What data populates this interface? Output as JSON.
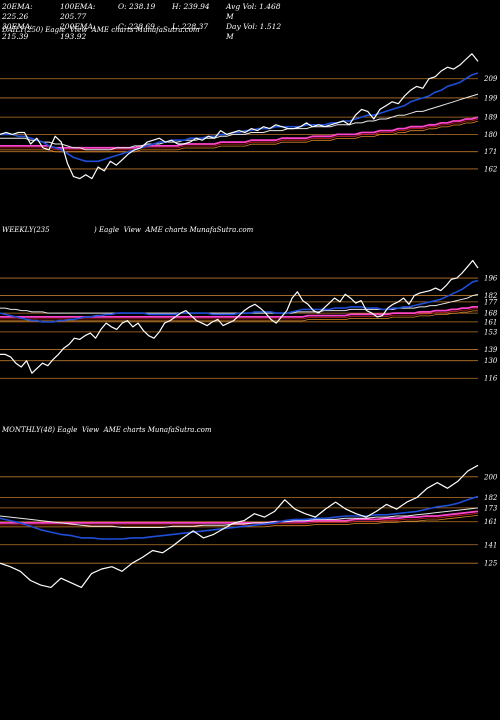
{
  "stats": {
    "row1": [
      "20EMA: 225.26",
      "100EMA: 205.77",
      "O: 238.19",
      "H: 239.94",
      "Avg Vol: 1.468 M"
    ],
    "row2": [
      "30EMA: 215.39",
      "200EMA: 193.92",
      "C: 228.69",
      "L: 228.37",
      "Day Vol: 1.512 M"
    ]
  },
  "colors": {
    "price": "#ffffff",
    "ema_fast": "#1f4fd8",
    "ema_mid": "#e8e8e8",
    "ema_slow": "#ff44cc",
    "ema_long": "#cc2222",
    "level": "#b8762b",
    "ema_orange": "#d98a2a"
  },
  "chart_data": [
    {
      "type": "line",
      "title": "DAILY(250) Eagle  View  AME charts MunafaSutra.com",
      "levels": [
        209,
        199,
        189,
        180,
        171,
        162
      ],
      "ylim": [
        150,
        225
      ],
      "series": [
        {
          "role": "price",
          "values": [
            180,
            181,
            180,
            181,
            181,
            175,
            178,
            173,
            172,
            179,
            176,
            165,
            158,
            157,
            159,
            157,
            163,
            161,
            166,
            164,
            167,
            170,
            172,
            173,
            176,
            177,
            178,
            176,
            177,
            175,
            175,
            176,
            178,
            177,
            179,
            178,
            182,
            180,
            181,
            182,
            181,
            183,
            182,
            184,
            183,
            185,
            184,
            183,
            183,
            184,
            186,
            184,
            185,
            184,
            185,
            186,
            187,
            185,
            190,
            193,
            192,
            188,
            193,
            195,
            197,
            196,
            200,
            203,
            205,
            204,
            209,
            210,
            213,
            215,
            214,
            216,
            219,
            222,
            218
          ]
        },
        {
          "role": "ema_fast",
          "values": [
            180,
            180,
            180,
            179,
            179,
            178,
            177,
            176,
            174,
            173,
            172,
            170,
            168,
            167,
            166,
            166,
            166,
            167,
            168,
            169,
            170,
            171,
            172,
            173,
            174,
            175,
            176,
            176,
            177,
            177,
            177,
            178,
            178,
            178,
            179,
            179,
            180,
            180,
            181,
            181,
            182,
            182,
            183,
            183,
            183,
            184,
            184,
            184,
            184,
            184,
            185,
            185,
            185,
            185,
            186,
            186,
            187,
            187,
            188,
            189,
            190,
            190,
            191,
            192,
            193,
            194,
            195,
            197,
            198,
            199,
            200,
            202,
            203,
            205,
            206,
            207,
            209,
            211,
            212
          ]
        },
        {
          "role": "ema_mid",
          "values": [
            178,
            178,
            178,
            178,
            178,
            177,
            177,
            176,
            176,
            175,
            175,
            174,
            173,
            173,
            172,
            172,
            172,
            172,
            172,
            173,
            173,
            173,
            174,
            174,
            175,
            175,
            175,
            176,
            176,
            176,
            177,
            177,
            177,
            178,
            178,
            178,
            179,
            179,
            180,
            180,
            180,
            181,
            181,
            181,
            182,
            182,
            182,
            183,
            183,
            183,
            183,
            184,
            184,
            184,
            184,
            185,
            185,
            185,
            186,
            186,
            187,
            187,
            188,
            188,
            189,
            190,
            190,
            191,
            192,
            192,
            193,
            194,
            195,
            196,
            197,
            198,
            199,
            200,
            201
          ]
        },
        {
          "role": "ema_slow",
          "values": [
            174,
            174,
            174,
            174,
            174,
            174,
            174,
            174,
            174,
            173,
            173,
            173,
            173,
            173,
            173,
            173,
            173,
            173,
            173,
            173,
            173,
            173,
            173,
            174,
            174,
            174,
            174,
            174,
            174,
            174,
            175,
            175,
            175,
            175,
            175,
            175,
            176,
            176,
            176,
            176,
            176,
            177,
            177,
            177,
            177,
            177,
            178,
            178,
            178,
            178,
            178,
            179,
            179,
            179,
            179,
            180,
            180,
            180,
            180,
            181,
            181,
            181,
            182,
            182,
            182,
            183,
            183,
            184,
            184,
            184,
            185,
            185,
            186,
            186,
            187,
            187,
            188,
            188,
            189
          ]
        }
      ]
    },
    {
      "type": "line",
      "title": "WEEKLY(235                    ) Eagle  View  AME charts MunafaSutra.com",
      "levels": [
        196,
        182,
        177,
        168,
        161,
        153,
        139,
        130,
        116
      ],
      "ylim": [
        105,
        220
      ],
      "series": [
        {
          "role": "price",
          "values": [
            135,
            135,
            133,
            128,
            125,
            130,
            120,
            124,
            128,
            126,
            131,
            135,
            140,
            143,
            148,
            147,
            150,
            152,
            148,
            155,
            160,
            157,
            155,
            160,
            162,
            157,
            160,
            154,
            150,
            148,
            153,
            160,
            162,
            165,
            168,
            170,
            166,
            162,
            160,
            158,
            161,
            163,
            158,
            160,
            162,
            166,
            170,
            173,
            175,
            172,
            168,
            163,
            160,
            165,
            170,
            180,
            185,
            178,
            175,
            170,
            168,
            172,
            176,
            180,
            177,
            183,
            180,
            176,
            178,
            170,
            168,
            165,
            166,
            172,
            175,
            177,
            180,
            175,
            182,
            184,
            185,
            186,
            188,
            186,
            190,
            195,
            196,
            200,
            205,
            210,
            204
          ]
        },
        {
          "role": "ema_fast",
          "values": [
            168,
            167,
            166,
            165,
            164,
            163,
            162,
            162,
            161,
            161,
            161,
            162,
            162,
            163,
            163,
            164,
            165,
            165,
            166,
            166,
            167,
            167,
            168,
            168,
            168,
            168,
            168,
            168,
            167,
            167,
            167,
            167,
            167,
            167,
            168,
            168,
            168,
            168,
            168,
            168,
            167,
            167,
            167,
            167,
            167,
            168,
            168,
            168,
            169,
            169,
            169,
            169,
            168,
            168,
            168,
            169,
            170,
            171,
            171,
            171,
            171,
            171,
            171,
            172,
            172,
            172,
            173,
            173,
            173,
            172,
            172,
            172,
            171,
            171,
            172,
            172,
            173,
            173,
            174,
            175,
            176,
            177,
            178,
            179,
            181,
            183,
            185,
            187,
            190,
            193,
            194
          ]
        },
        {
          "role": "ema_mid",
          "values": [
            172,
            172,
            171,
            171,
            170,
            170,
            169,
            169,
            169,
            168,
            168,
            168,
            168,
            168,
            168,
            168,
            168,
            168,
            168,
            168,
            168,
            168,
            168,
            168,
            168,
            168,
            168,
            168,
            168,
            168,
            168,
            168,
            168,
            168,
            168,
            168,
            168,
            168,
            168,
            168,
            168,
            168,
            168,
            168,
            168,
            168,
            168,
            168,
            168,
            168,
            168,
            168,
            168,
            168,
            168,
            168,
            169,
            169,
            169,
            169,
            169,
            170,
            170,
            170,
            170,
            170,
            171,
            171,
            171,
            171,
            171,
            171,
            171,
            171,
            171,
            172,
            172,
            172,
            172,
            173,
            173,
            174,
            174,
            175,
            176,
            177,
            178,
            179,
            180,
            182,
            183
          ]
        },
        {
          "role": "ema_slow",
          "values": [
            165,
            165,
            165,
            165,
            165,
            165,
            165,
            165,
            165,
            165,
            165,
            165,
            165,
            165,
            165,
            165,
            165,
            165,
            165,
            165,
            165,
            165,
            165,
            165,
            165,
            165,
            165,
            165,
            165,
            165,
            165,
            165,
            165,
            165,
            165,
            165,
            165,
            165,
            165,
            165,
            165,
            165,
            165,
            165,
            165,
            165,
            165,
            165,
            165,
            165,
            165,
            165,
            165,
            165,
            165,
            165,
            165,
            165,
            166,
            166,
            166,
            166,
            166,
            166,
            166,
            166,
            167,
            167,
            167,
            167,
            167,
            167,
            167,
            167,
            168,
            168,
            168,
            168,
            168,
            169,
            169,
            169,
            170,
            170,
            170,
            171,
            171,
            172,
            172,
            173,
            173
          ]
        }
      ]
    },
    {
      "type": "line",
      "title": "MONTHLY(48) Eagle  View  AME charts MunafaSutra.com",
      "levels": [
        200,
        182,
        173,
        161,
        141,
        125
      ],
      "ylim": [
        100,
        225
      ],
      "series": [
        {
          "role": "price",
          "values": [
            125,
            122,
            118,
            110,
            106,
            104,
            112,
            108,
            104,
            116,
            120,
            122,
            118,
            125,
            130,
            136,
            134,
            140,
            147,
            153,
            147,
            150,
            155,
            160,
            162,
            168,
            165,
            170,
            180,
            172,
            168,
            165,
            172,
            178,
            172,
            168,
            165,
            170,
            176,
            172,
            178,
            182,
            190,
            195,
            190,
            196,
            205,
            210
          ]
        },
        {
          "role": "ema_fast",
          "values": [
            164,
            162,
            160,
            157,
            154,
            152,
            150,
            149,
            147,
            147,
            146,
            146,
            146,
            147,
            147,
            148,
            149,
            150,
            151,
            152,
            153,
            154,
            155,
            156,
            157,
            158,
            159,
            160,
            162,
            163,
            163,
            164,
            164,
            165,
            166,
            166,
            166,
            167,
            167,
            168,
            169,
            170,
            172,
            174,
            175,
            177,
            180,
            183
          ]
        },
        {
          "role": "ema_mid",
          "values": [
            166,
            165,
            164,
            163,
            162,
            161,
            160,
            159,
            158,
            157,
            157,
            157,
            156,
            156,
            156,
            156,
            156,
            157,
            157,
            157,
            158,
            158,
            158,
            159,
            159,
            160,
            160,
            161,
            161,
            162,
            162,
            163,
            163,
            163,
            164,
            164,
            164,
            165,
            165,
            166,
            166,
            167,
            168,
            169,
            170,
            171,
            172,
            173
          ]
        },
        {
          "role": "ema_slow",
          "values": [
            160,
            160,
            160,
            160,
            160,
            160,
            160,
            160,
            160,
            160,
            160,
            160,
            160,
            160,
            160,
            160,
            160,
            160,
            160,
            160,
            160,
            160,
            160,
            160,
            160,
            160,
            160,
            161,
            161,
            161,
            161,
            162,
            162,
            162,
            162,
            163,
            163,
            163,
            164,
            164,
            165,
            165,
            166,
            166,
            167,
            168,
            169,
            170
          ]
        }
      ]
    }
  ]
}
